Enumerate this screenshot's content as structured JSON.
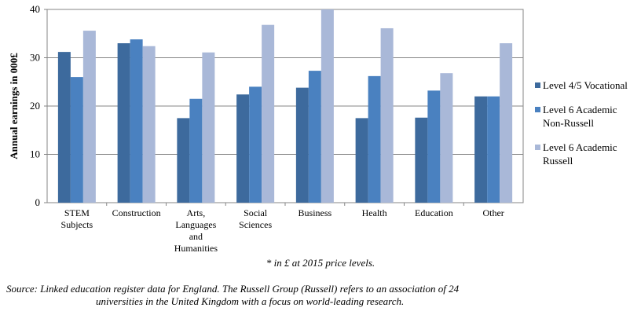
{
  "chart_data": {
    "type": "bar",
    "categories": [
      [
        "STEM",
        "Subjects"
      ],
      [
        "Construction"
      ],
      [
        "Arts,",
        "Languages",
        "and",
        "Humanities"
      ],
      [
        "Social",
        "Sciences"
      ],
      [
        "Business"
      ],
      [
        "Health"
      ],
      [
        "Education"
      ],
      [
        "Other"
      ]
    ],
    "series": [
      {
        "name": "Level 4/5 Vocational",
        "name_lines": [
          "Level 4/5 Vocational"
        ],
        "color": "#3d6a9d",
        "values": [
          31.2,
          33.0,
          17.5,
          22.4,
          23.8,
          17.5,
          17.6,
          22.0
        ]
      },
      {
        "name": "Level 6 Academic Non-Russell",
        "name_lines": [
          "Level 6 Academic",
          "Non-Russell"
        ],
        "color": "#4a81c0",
        "values": [
          26.0,
          33.8,
          21.5,
          24.0,
          27.3,
          26.2,
          23.2,
          22.0
        ]
      },
      {
        "name": "Level 6 Academic Russell",
        "name_lines": [
          "Level 6 Academic",
          "Russell"
        ],
        "color": "#a9b8d8",
        "values": [
          35.6,
          32.4,
          31.1,
          36.8,
          40.0,
          36.1,
          26.8,
          33.0
        ]
      }
    ],
    "yticks": [
      "0",
      "10",
      "20",
      "30",
      "40"
    ],
    "ylim": [
      0,
      40
    ],
    "ylabel": "Annual earnings in 000£",
    "xlabel": "",
    "title": "",
    "grid": true,
    "legend": "right"
  },
  "footnote": "* in £ at 2015 price levels.",
  "source": {
    "line1": "Source: Linked education register data for England. The Russell Group (Russell) refers to an association of 24",
    "line2": "universities  in the United Kingdom with a focus on world-leading research."
  }
}
